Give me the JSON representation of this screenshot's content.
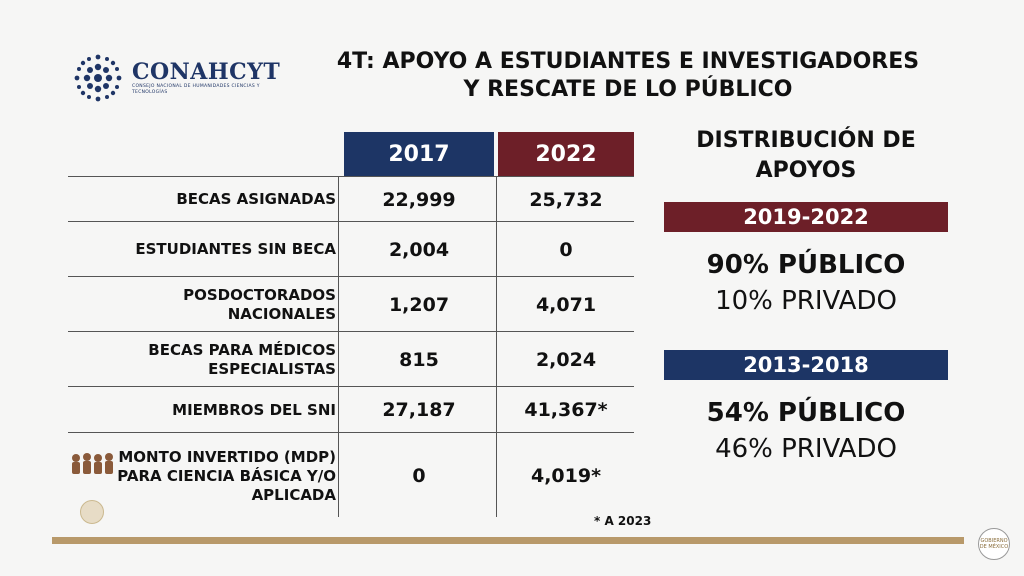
{
  "logo": {
    "name": "CONAHCYT",
    "subtitle": "CONSEJO NACIONAL DE HUMANIDADES CIENCIAS Y TECNOLOGÍAS"
  },
  "title": {
    "line1": "4T: APOYO A ESTUDIANTES E INVESTIGADORES",
    "line2": "Y RESCATE DE LO PÚBLICO"
  },
  "table": {
    "headers": [
      "2017",
      "2022"
    ],
    "rows": [
      {
        "label_line1": "BECAS ASIGNADAS",
        "label_line2": "",
        "v2017": "22,999",
        "v2022": "25,732"
      },
      {
        "label_line1": "ESTUDIANTES SIN BECA",
        "label_line2": "",
        "v2017": "2,004",
        "v2022": "0"
      },
      {
        "label_line1": "POSDOCTORADOS",
        "label_line2": "NACIONALES",
        "v2017": "1,207",
        "v2022": "4,071"
      },
      {
        "label_line1": "BECAS PARA MÉDICOS",
        "label_line2": "ESPECIALISTAS",
        "v2017": "815",
        "v2022": "2,024"
      },
      {
        "label_line1": "MIEMBROS DEL SNI",
        "label_line2": "",
        "v2017": "27,187",
        "v2022": "41,367*"
      },
      {
        "label_line1": "MONTO INVERTIDO (MDP)",
        "label_line2": "PARA CIENCIA BÁSICA Y/O",
        "label_line3": "APLICADA",
        "v2017": "0",
        "v2022": "4,019*"
      }
    ],
    "footnote": "* A 2023"
  },
  "distribution": {
    "title_line1": "DISTRIBUCIÓN DE",
    "title_line2": "APOYOS",
    "periods": [
      {
        "label": "2019-2022",
        "public": "90% PÚBLICO",
        "private": "10% PRIVADO"
      },
      {
        "label": "2013-2018",
        "public": "54% PÚBLICO",
        "private": "46% PRIVADO"
      }
    ]
  },
  "colors": {
    "navy": "#1d3565",
    "maroon": "#6d1f28",
    "gold": "#b8996a"
  },
  "seal": {
    "text": "GOBIERNO DE MÉXICO"
  }
}
